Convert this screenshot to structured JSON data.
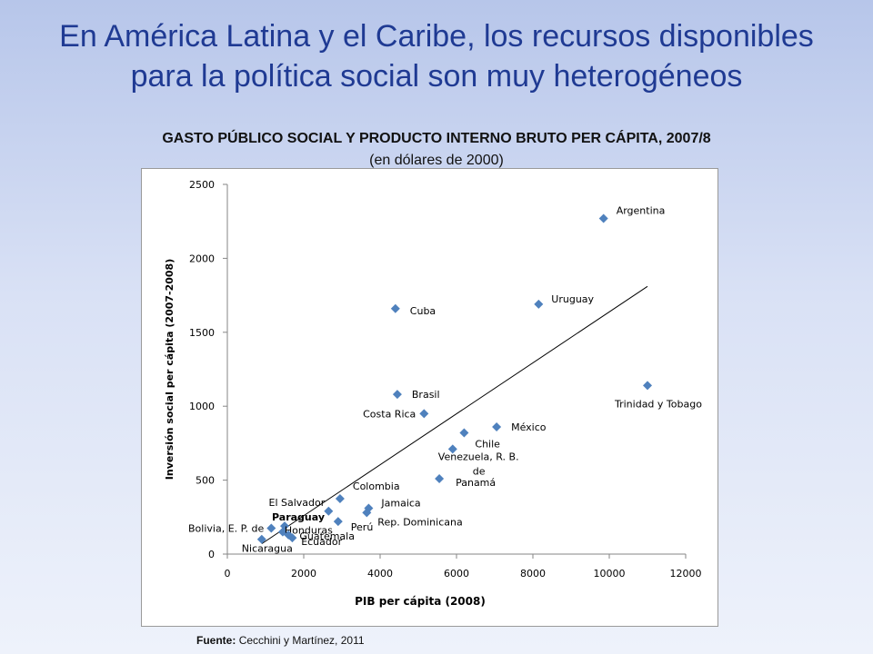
{
  "slide": {
    "title_line1": "En América Latina y el Caribe, los recursos disponibles",
    "title_line2": "para la política social son muy heterogéneos"
  },
  "chart_heading": "GASTO PÚBLICO SOCIAL Y PRODUCTO INTERNO BRUTO PER CÁPITA, 2007/8",
  "chart_subheading": "(en dólares de 2000)",
  "source": {
    "label": "Fuente:",
    "text": "Cecchini  y Martínez,  2011"
  },
  "colors": {
    "title": "#1f3a93",
    "marker": "#4f81bd",
    "trend": "#000000"
  },
  "chart_data": {
    "type": "scatter",
    "xlabel": "PIB per cápita (2008)",
    "ylabel": "Inversión social per cápita (2007-2008)",
    "xlim": [
      0,
      12000
    ],
    "ylim": [
      0,
      2500
    ],
    "xticks": [
      "0",
      "2000",
      "4000",
      "6000",
      "8000",
      "10000",
      "12000"
    ],
    "yticks": [
      "0",
      "500",
      "1000",
      "1500",
      "2000",
      "2500"
    ],
    "grid": false,
    "legend": "none",
    "points": [
      {
        "label": "Argentina",
        "x": 9850,
        "y": 2270
      },
      {
        "label": "Uruguay",
        "x": 8150,
        "y": 1690
      },
      {
        "label": "Cuba",
        "x": 4400,
        "y": 1660
      },
      {
        "label": "Trinidad y Tobago",
        "x": 11000,
        "y": 1140
      },
      {
        "label": "Brasil",
        "x": 4450,
        "y": 1080
      },
      {
        "label": "Costa Rica",
        "x": 5150,
        "y": 950
      },
      {
        "label": "México",
        "x": 7050,
        "y": 860
      },
      {
        "label": "Chile",
        "x": 6200,
        "y": 820
      },
      {
        "label": "Venezuela, R. B. de",
        "x": 5900,
        "y": 710
      },
      {
        "label": "Panamá",
        "x": 5550,
        "y": 510
      },
      {
        "label": "Colombia",
        "x": 2950,
        "y": 375
      },
      {
        "label": "El Salvador",
        "x": 2650,
        "y": 290
      },
      {
        "label": "Jamaica",
        "x": 3700,
        "y": 310
      },
      {
        "label": "Rep. Dominicana",
        "x": 3650,
        "y": 280
      },
      {
        "label": "Perú",
        "x": 2900,
        "y": 220
      },
      {
        "label": "Paraguay",
        "x": 1500,
        "y": 190
      },
      {
        "label": "Bolivia, E. P. de",
        "x": 1150,
        "y": 175
      },
      {
        "label": "Honduras",
        "x": 1450,
        "y": 150
      },
      {
        "label": "Guatemala",
        "x": 1700,
        "y": 110
      },
      {
        "label": "Nicaragua",
        "x": 900,
        "y": 100
      },
      {
        "label": "Ecuador",
        "x": 1600,
        "y": 130
      }
    ],
    "trendline": {
      "x": [
        900,
        11000
      ],
      "y": [
        70,
        1810
      ]
    }
  }
}
